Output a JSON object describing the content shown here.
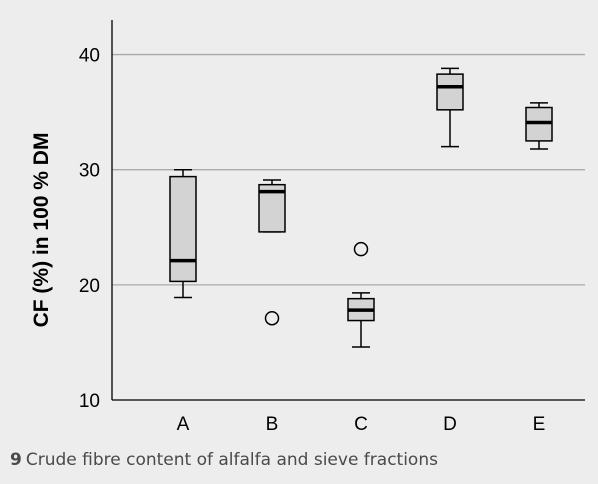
{
  "chart_data": {
    "type": "boxplot",
    "ylabel": "CF (%) in 100 % DM",
    "ylim": [
      10,
      43
    ],
    "yticks": [
      10,
      20,
      30,
      40
    ],
    "categories": [
      "A",
      "B",
      "C",
      "D",
      "E"
    ],
    "grid": true,
    "boxes": [
      {
        "category": "A",
        "whisker_low": 18.9,
        "q1": 20.3,
        "median": 22.1,
        "q3": 29.4,
        "whisker_high": 30.0,
        "outliers": []
      },
      {
        "category": "B",
        "whisker_low": 24.6,
        "q1": 24.6,
        "median": 28.1,
        "q3": 28.7,
        "whisker_high": 29.1,
        "outliers": [
          17.1
        ]
      },
      {
        "category": "C",
        "whisker_low": 14.6,
        "q1": 16.9,
        "median": 17.8,
        "q3": 18.8,
        "whisker_high": 19.3,
        "outliers": [
          23.1
        ]
      },
      {
        "category": "D",
        "whisker_low": 32.0,
        "q1": 35.2,
        "median": 37.2,
        "q3": 38.3,
        "whisker_high": 38.8,
        "outliers": []
      },
      {
        "category": "E",
        "whisker_low": 31.8,
        "q1": 32.5,
        "median": 34.1,
        "q3": 35.4,
        "whisker_high": 35.8,
        "outliers": []
      }
    ],
    "colors": {
      "box_fill": "#d3d3d3",
      "background": "#ededed",
      "grid": "#aaaaaa"
    }
  },
  "caption": {
    "number": "9",
    "text": "Crude fibre content of alfalfa and sieve fractions"
  }
}
